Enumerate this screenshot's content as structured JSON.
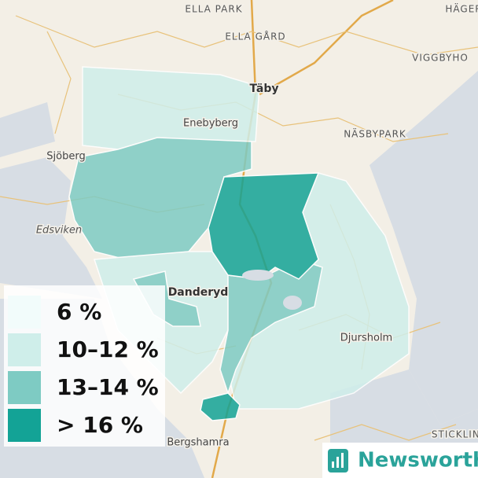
{
  "places": [
    "ELLA PARK",
    "HÄGER",
    "ELLA GÅRD",
    "VIGGBYHO",
    "Täby",
    "Enebyberg",
    "NÄSBYPARK",
    "Sjöberg",
    "Edsviken",
    "Danderyd",
    "Djursholm",
    "Bergshamra",
    "STICKLING"
  ],
  "legend": [
    {
      "label": "6 %",
      "color": "#f2fcfb"
    },
    {
      "label": "10–12 %",
      "color": "#cfeeea"
    },
    {
      "label": "13–14 %",
      "color": "#7ecbc3"
    },
    {
      "label": "> 16 %",
      "color": "#13a396"
    }
  ],
  "brand": "Newsworthy"
}
